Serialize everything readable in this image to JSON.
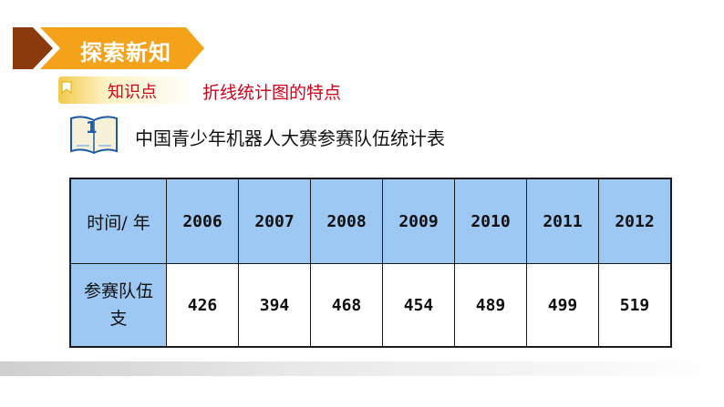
{
  "header": {
    "title": "探索新知"
  },
  "knowledge": {
    "label": "知识点",
    "topic": "折线统计图的特点"
  },
  "section": {
    "number": "1",
    "title": "中国青少年机器人大赛参赛队伍统计表"
  },
  "table": {
    "row_headers": [
      "时间/ 年",
      "参赛队伍支"
    ],
    "row2_header_lines": [
      "参赛队伍",
      "支"
    ],
    "years": [
      "2006",
      "2007",
      "2008",
      "2009",
      "2010",
      "2011",
      "2012"
    ],
    "teams": [
      "426",
      "394",
      "468",
      "454",
      "489",
      "499",
      "519"
    ]
  },
  "colors": {
    "banner_orange": "#f5a21b",
    "banner_brown": "#8b3a0e",
    "header_cell_blue": "#9cc8f3",
    "accent_red": "#d0021b"
  },
  "icons": {
    "banner_arrow": "chevron-arrow-icon",
    "tag": "bookmark-tag-icon",
    "book": "open-book-icon"
  }
}
